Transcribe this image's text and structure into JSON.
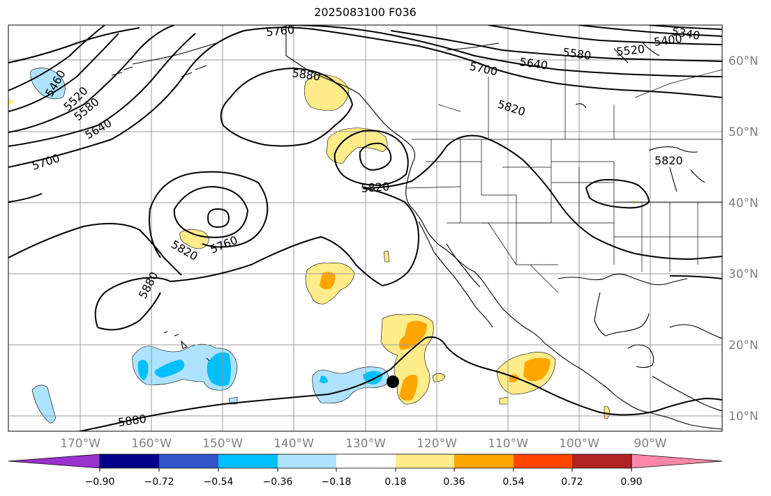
{
  "title": "2025083100 F036",
  "map": {
    "lon_labels": [
      "170°W",
      "160°W",
      "150°W",
      "140°W",
      "130°W",
      "120°W",
      "110°W",
      "100°W",
      "90°W"
    ],
    "lat_labels": [
      "60°N",
      "50°N",
      "40°N",
      "30°N",
      "20°N",
      "10°N"
    ],
    "gridline_color": "#999999",
    "coastline_color": "#000000"
  },
  "contours": {
    "labels": [
      "5760",
      "5880",
      "5700",
      "5640",
      "5580",
      "5520",
      "5400",
      "5340",
      "5460",
      "5820",
      "5700",
      "5520",
      "5580",
      "5640",
      "5820",
      "5820",
      "5820",
      "5760",
      "5880",
      "5880"
    ]
  },
  "colorbar": {
    "ticks": [
      "−0.90",
      "−0.72",
      "−0.54",
      "−0.36",
      "−0.18",
      "0.18",
      "0.36",
      "0.54",
      "0.72",
      "0.90"
    ],
    "colors": [
      "#9932cc",
      "#00008b",
      "#3355cc",
      "#00bfff",
      "#aee2ff",
      "#ffffff",
      "#ffec8b",
      "#ffa500",
      "#ff4500",
      "#b22222",
      "#ff88aa"
    ]
  },
  "marker": {
    "color": "#000000"
  }
}
